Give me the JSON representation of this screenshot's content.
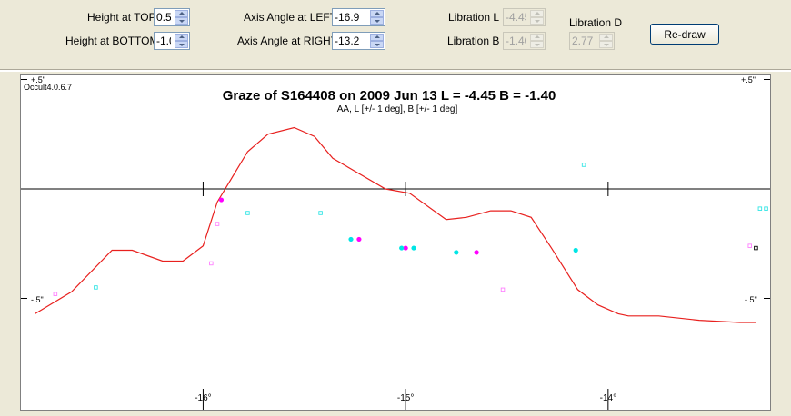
{
  "controls": {
    "height_top": {
      "label": "Height at TOP",
      "value": "0.5"
    },
    "height_bottom": {
      "label": "Height at BOTTOM",
      "value": "-1.0"
    },
    "aa_left": {
      "label": "Axis Angle at LEFT",
      "value": "-16.9"
    },
    "aa_right": {
      "label": "Axis Angle at RIGHT",
      "value": "-13.2"
    },
    "lib_l": {
      "label": "Libration  L",
      "value": "-4.45"
    },
    "lib_b": {
      "label": "Libration  B",
      "value": "-1.40"
    },
    "lib_d": {
      "label": "Libration  D",
      "value": "2.77"
    },
    "redraw": "Re-draw"
  },
  "plot": {
    "version": "Occult4.0.6.7",
    "top_left_label": "+.5\"",
    "top_right_label": "+.5\"",
    "mid_left_label": "-.5\"",
    "mid_right_label": "-.5\"",
    "colors": {
      "profile": "#e8201e",
      "magenta": "#ff00ff",
      "cyan": "#00e5e5",
      "axis": "#000000"
    }
  },
  "chart_data": {
    "type": "scatter",
    "title": "Graze of  S164408  on  2009 Jun 13    L = -4.45    B = -1.40",
    "subtitle": "AA, L [+/- 1 deg], B [+/- 1 deg]",
    "xlim": [
      -16.9,
      -13.2
    ],
    "ylim": [
      -1.0,
      0.5
    ],
    "x_ticks": [
      -16,
      -15,
      -14
    ],
    "x_tick_labels": [
      "-16°",
      "-15°",
      "-14°"
    ],
    "y_ticks": [
      0.5,
      0,
      -0.5
    ],
    "profile": {
      "x": [
        -16.83,
        -16.65,
        -16.45,
        -16.35,
        -16.2,
        -16.1,
        -16.0,
        -15.93,
        -15.78,
        -15.68,
        -15.55,
        -15.45,
        -15.36,
        -15.1,
        -14.98,
        -14.8,
        -14.7,
        -14.58,
        -14.48,
        -14.38,
        -14.28,
        -14.15,
        -14.05,
        -13.95,
        -13.9,
        -13.75,
        -13.55,
        -13.35,
        -13.27
      ],
      "y": [
        -0.57,
        -0.47,
        -0.28,
        -0.28,
        -0.33,
        -0.33,
        -0.26,
        -0.06,
        0.17,
        0.25,
        0.28,
        0.24,
        0.14,
        0.0,
        -0.02,
        -0.14,
        -0.13,
        -0.1,
        -0.1,
        -0.13,
        -0.27,
        -0.46,
        -0.53,
        -0.57,
        -0.58,
        -0.58,
        -0.6,
        -0.61,
        -0.61
      ]
    },
    "series": [
      {
        "color": "#ff00ff",
        "style": "filled",
        "x": [
          -15.91,
          -15.23,
          -15.0,
          -14.65
        ],
        "y": [
          -0.05,
          -0.23,
          -0.27,
          -0.29
        ]
      },
      {
        "color": "#00e5e5",
        "style": "filled",
        "x": [
          -15.27,
          -15.02,
          -14.96,
          -14.75,
          -14.16
        ],
        "y": [
          -0.23,
          -0.27,
          -0.27,
          -0.29,
          -0.28
        ]
      },
      {
        "color": "#ff80ff",
        "style": "hollow",
        "x": [
          -16.73,
          -15.93,
          -15.96,
          -14.52,
          -13.3
        ],
        "y": [
          -0.48,
          -0.16,
          -0.34,
          -0.46,
          -0.26
        ]
      },
      {
        "color": "#33e5e5",
        "style": "hollow",
        "x": [
          -16.53,
          -15.78,
          -15.42,
          -14.12,
          -13.22,
          -13.25
        ],
        "y": [
          -0.45,
          -0.11,
          -0.11,
          0.11,
          -0.09,
          -0.09
        ]
      },
      {
        "color": "#000000",
        "style": "hollow",
        "x": [
          -13.27
        ],
        "y": [
          -0.27
        ]
      }
    ]
  }
}
